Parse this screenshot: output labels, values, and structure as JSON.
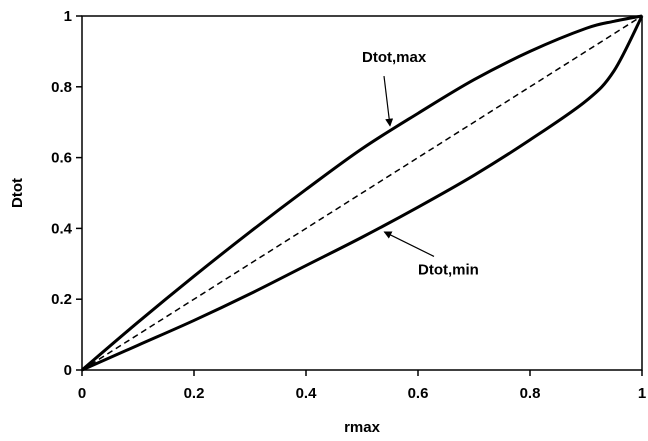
{
  "chart_data": {
    "type": "line",
    "title": "",
    "xlabel": "rmax",
    "ylabel": "Dtot",
    "xlim": [
      0,
      1
    ],
    "ylim": [
      0,
      1
    ],
    "x_ticks": [
      "0",
      "0.2",
      "0.4",
      "0.6",
      "0.8",
      "1"
    ],
    "y_ticks": [
      "0",
      "0.2",
      "0.4",
      "0.6",
      "0.8",
      "1"
    ],
    "grid": false,
    "legend": "none",
    "series": [
      {
        "name": "Dtot,max",
        "style": "solid",
        "color": "#000000",
        "x": [
          0,
          0.1,
          0.2,
          0.3,
          0.4,
          0.5,
          0.6,
          0.7,
          0.8,
          0.9,
          0.95,
          1.0
        ],
        "y": [
          0,
          0.135,
          0.265,
          0.39,
          0.51,
          0.625,
          0.725,
          0.82,
          0.9,
          0.965,
          0.985,
          1.0
        ]
      },
      {
        "name": "Dtot,min",
        "style": "solid",
        "color": "#000000",
        "x": [
          0,
          0.1,
          0.2,
          0.3,
          0.4,
          0.5,
          0.6,
          0.7,
          0.8,
          0.9,
          0.95,
          1.0
        ],
        "y": [
          0,
          0.07,
          0.14,
          0.215,
          0.295,
          0.375,
          0.46,
          0.55,
          0.65,
          0.76,
          0.845,
          1.0
        ]
      },
      {
        "style": "dashed",
        "color": "#000000",
        "x": [
          0,
          1
        ],
        "y": [
          0,
          1
        ]
      }
    ],
    "annotations": [
      {
        "text": "Dtot,max",
        "label_at": [
          0.5,
          0.87
        ],
        "arrow_to": [
          0.55,
          0.69
        ],
        "anchor": "start"
      },
      {
        "text": "Dtot,min",
        "label_at": [
          0.6,
          0.27
        ],
        "arrow_to": [
          0.54,
          0.39
        ],
        "anchor": "start"
      }
    ]
  }
}
